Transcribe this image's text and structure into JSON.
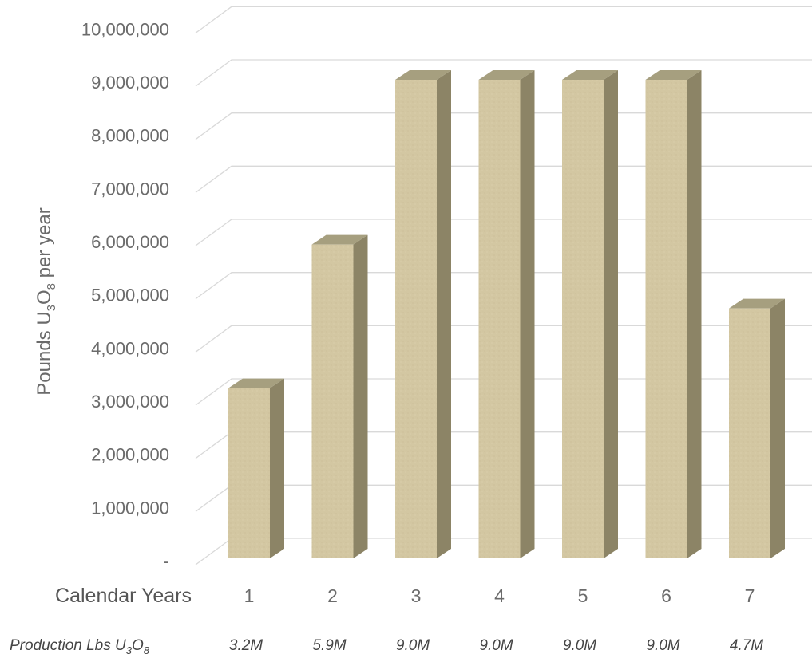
{
  "chart_data": {
    "type": "bar",
    "style": "3d-column",
    "categories": [
      "1",
      "2",
      "3",
      "4",
      "5",
      "6",
      "7"
    ],
    "values": [
      3200000,
      5900000,
      9000000,
      9000000,
      9000000,
      9000000,
      4700000
    ],
    "ylim": [
      0,
      10000000
    ],
    "yticks": [
      "-",
      "1,000,000",
      "2,000,000",
      "3,000,000",
      "4,000,000",
      "5,000,000",
      "6,000,000",
      "7,000,000",
      "8,000,000",
      "9,000,000",
      "10,000,000"
    ],
    "ylabel": {
      "pre": "Pounds U",
      "sub1": "3",
      "mid": "O",
      "sub2": "8",
      "post": " per year"
    },
    "xlabel": "Calendar Years",
    "grid": true,
    "colors": {
      "front": "#d3c7a2",
      "side": "#8c8466",
      "top": "#a69f7f"
    },
    "production_row": {
      "label": {
        "pre": "Production Lbs U",
        "sub1": "3",
        "mid": "O",
        "sub2": "8"
      },
      "values": [
        "3.2M",
        "5.9M",
        "9.0M",
        "9.0M",
        "9.0M",
        "9.0M",
        "4.7M"
      ]
    }
  }
}
